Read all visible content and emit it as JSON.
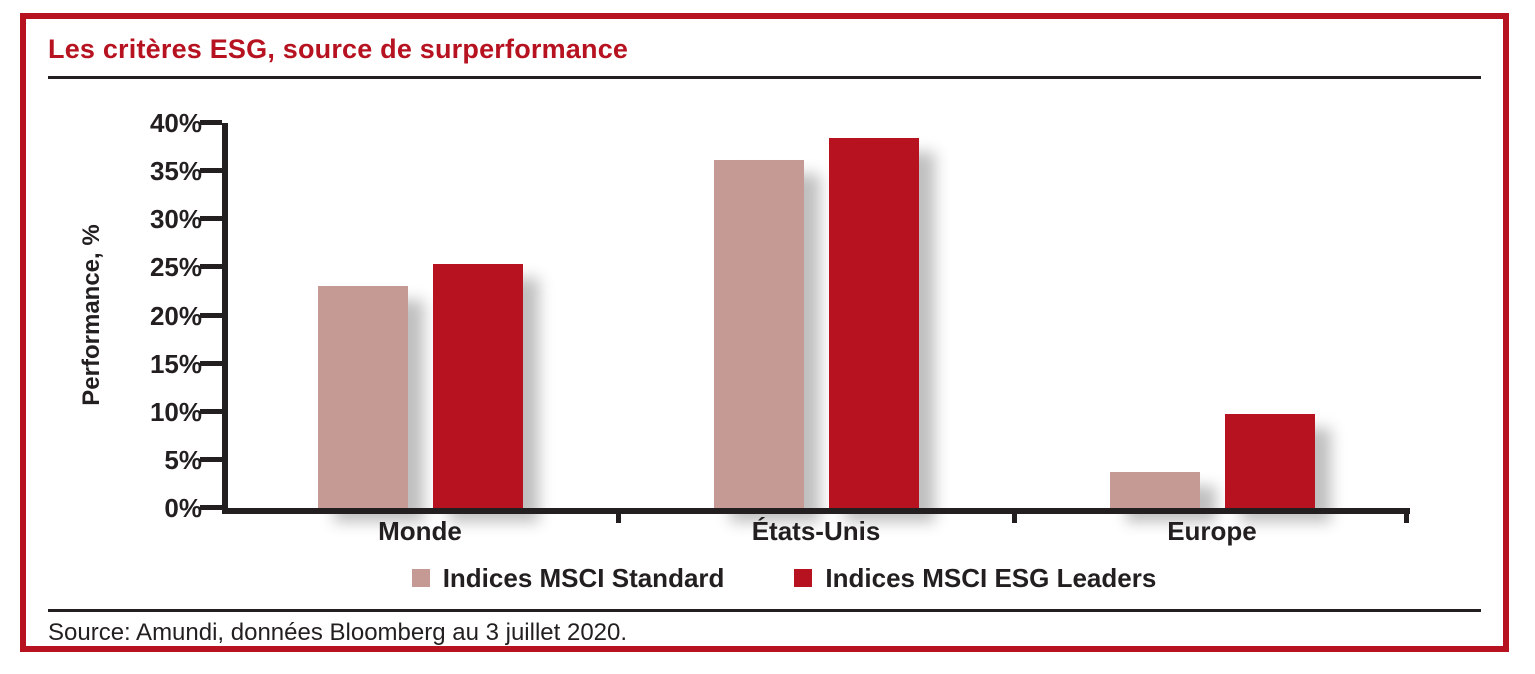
{
  "header": {
    "title": "Les critères ESG, source de surperformance"
  },
  "chart_data": {
    "type": "bar",
    "title": "Les critères ESG, source de surperformance",
    "categories": [
      "Monde",
      "États-Unis",
      "Europe"
    ],
    "series": [
      {
        "name": "Indices MSCI Standard",
        "color": "#c59a94",
        "values": [
          23.1,
          36.2,
          3.7
        ]
      },
      {
        "name": "Indices MSCI ESG Leaders",
        "color": "#b61220",
        "values": [
          25.4,
          38.4,
          9.8
        ]
      }
    ],
    "xlabel": "",
    "ylabel": "Performance, %",
    "ylim": [
      0,
      40
    ],
    "ytick_step": 5,
    "ytick_suffix": "%",
    "grid": false,
    "legend_position": "bottom"
  },
  "footer": {
    "source": "Source: Amundi, données Bloomberg au 3 juillet 2020."
  },
  "colors": {
    "accent_red": "#b61220",
    "muted_rose": "#c59a94",
    "text_ink": "#231f20",
    "bar_shadow": "rgba(0,0,0,0.25)"
  }
}
